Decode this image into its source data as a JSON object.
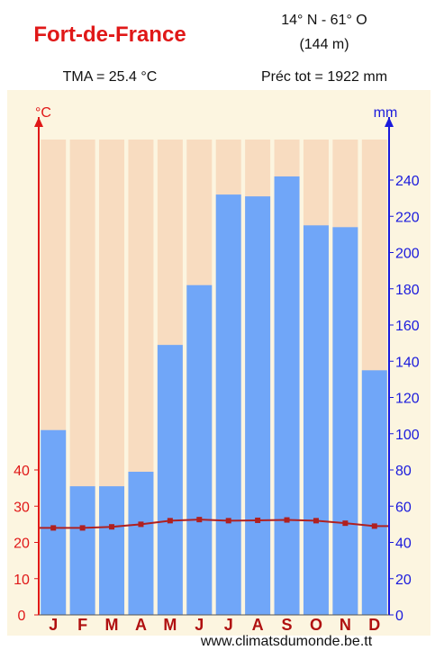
{
  "header": {
    "city": "Fort-de-France",
    "coords_line1": "14° N - 61° O",
    "coords_line2": "(144 m)",
    "tma": "TMA = 25.4 °C",
    "precip_total": "Préc tot = 1922 mm"
  },
  "footer": {
    "credit": "www.climatsdumonde.be.tt"
  },
  "colors": {
    "plot_bg": "#fcf5e0",
    "column_bg": "#f8dcc0",
    "precip_bar": "#70a6f8",
    "temp_line": "#b02020",
    "left_axis": "#e01818",
    "right_axis": "#1a1adc"
  },
  "chart_data": {
    "type": "bar",
    "categories": [
      "J",
      "F",
      "M",
      "A",
      "M",
      "J",
      "J",
      "A",
      "S",
      "O",
      "N",
      "D"
    ],
    "xlabel": "",
    "left_axis_unit": "°C",
    "right_axis_unit": "mm",
    "left_ticks": [
      0,
      10,
      20,
      30,
      40
    ],
    "right_ticks": [
      0,
      20,
      40,
      60,
      80,
      100,
      120,
      140,
      160,
      180,
      200,
      220,
      240
    ],
    "ylim_temp": [
      0,
      60
    ],
    "ylim_precip": [
      0,
      260
    ],
    "series": [
      {
        "kind": "bar",
        "axis": "right",
        "values": [
          102,
          71,
          71,
          79,
          149,
          182,
          232,
          231,
          242,
          215,
          214,
          135
        ]
      },
      {
        "kind": "line",
        "axis": "left",
        "values": [
          24.0,
          24.0,
          24.3,
          25.0,
          26.0,
          26.3,
          26.0,
          26.1,
          26.2,
          26.0,
          25.3,
          24.5
        ]
      }
    ]
  }
}
